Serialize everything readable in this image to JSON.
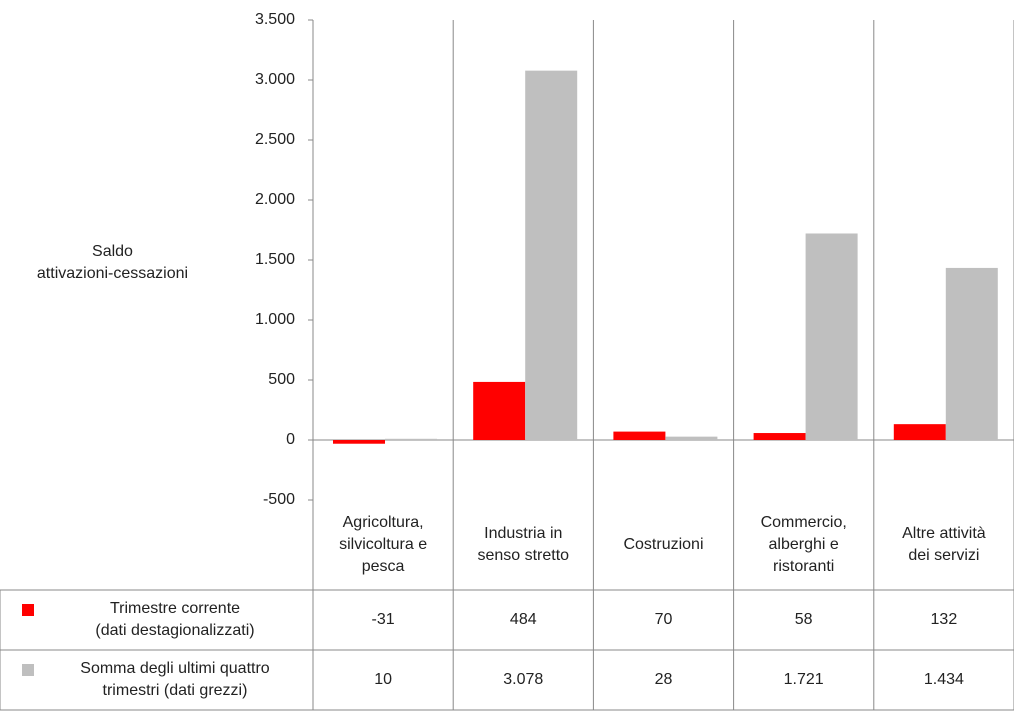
{
  "chart_data": {
    "type": "bar",
    "y_label": "Saldo\nattivazioni-cessazioni",
    "categories": [
      "Agricoltura,\nsilvicoltura e\npesca",
      "Industria in\nsenso stretto",
      "Costruzioni",
      "Commercio,\nalberghi e\nristoranti",
      "Altre attività\ndei servizi"
    ],
    "series": [
      {
        "name": "Trimestre corrente\n(dati destagionalizzati)",
        "color": "#ff0000",
        "values": [
          -31,
          484,
          70,
          58,
          132
        ]
      },
      {
        "name": "Somma degli ultimi quattro\ntrimestri (dati grezzi)",
        "color": "#bfbfbf",
        "values": [
          10,
          3078,
          28,
          1721,
          1434
        ],
        "value_labels": [
          "10",
          "3.078",
          "28",
          "1.721",
          "1.434"
        ]
      }
    ],
    "ylim": [
      -500,
      3500
    ],
    "yticks": [
      -500,
      0,
      500,
      {
        "value": 1000,
        "label": "1.000"
      },
      {
        "value": 1500,
        "label": "1.500"
      },
      {
        "value": 2000,
        "label": "2.000"
      },
      {
        "value": 2500,
        "label": "2.500"
      },
      {
        "value": 3000,
        "label": "3.000"
      },
      {
        "value": 3500,
        "label": "3.500"
      }
    ],
    "data_table": true
  }
}
